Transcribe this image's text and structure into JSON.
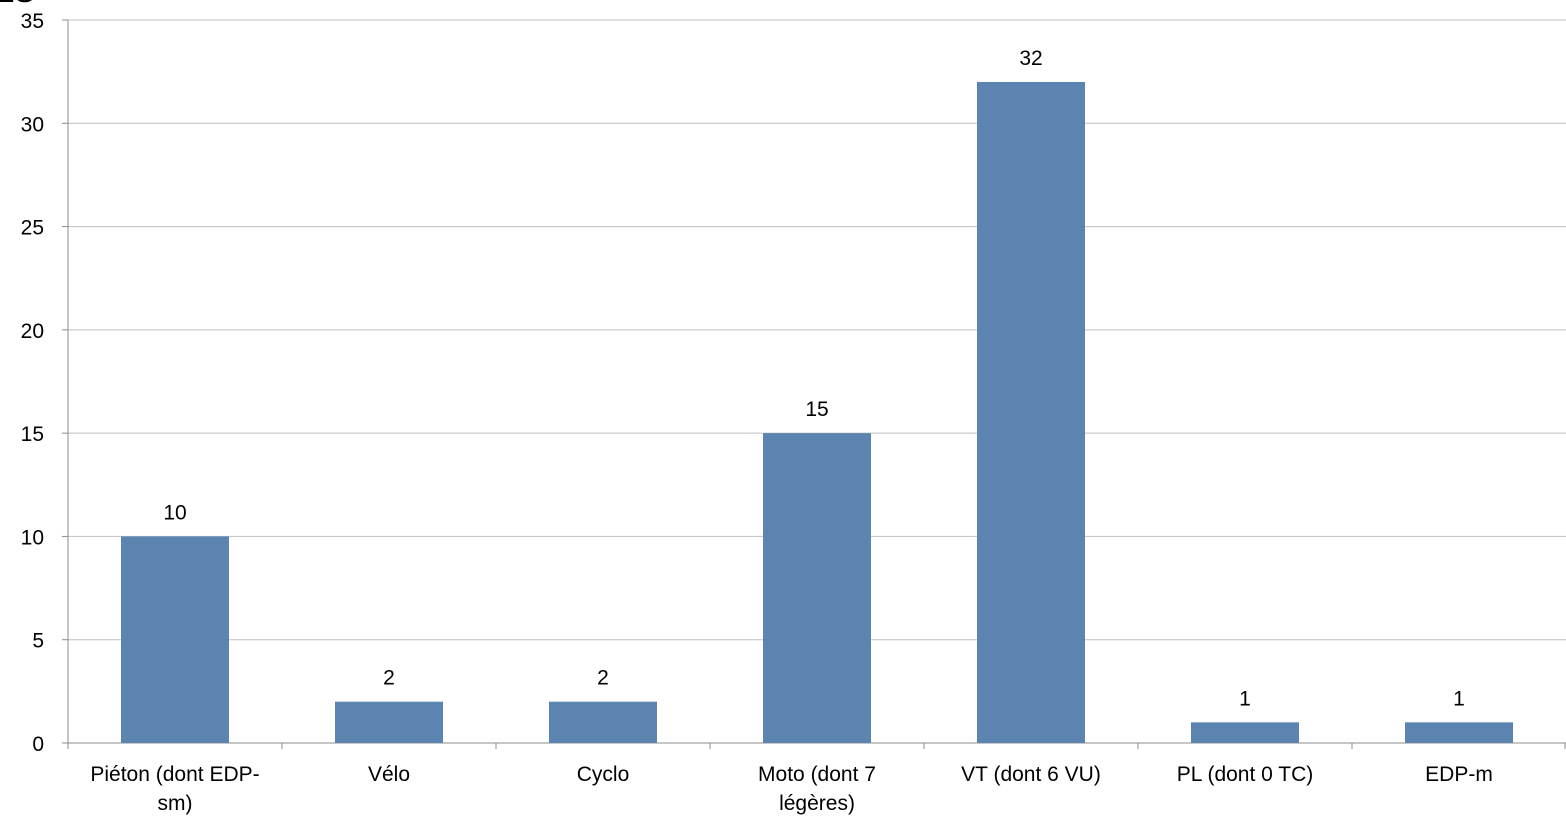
{
  "chart_data": {
    "type": "bar",
    "categories": [
      [
        "Piéton (dont EDP-",
        "sm)"
      ],
      [
        "Vélo"
      ],
      [
        "Cyclo"
      ],
      [
        "Moto (dont 7",
        "légères)"
      ],
      [
        "VT (dont 6 VU)"
      ],
      [
        "PL (dont 0 TC)"
      ],
      [
        "EDP-m"
      ]
    ],
    "values": [
      10,
      2,
      2,
      15,
      32,
      1,
      1
    ],
    "data_labels": [
      "10",
      "2",
      "2",
      "15",
      "32",
      "1",
      "1"
    ],
    "ylim": [
      0,
      35
    ],
    "yticks": [
      0,
      5,
      10,
      15,
      20,
      25,
      30,
      35
    ],
    "grid": true,
    "legend": "none",
    "colors": {
      "bar": "#5b84b1",
      "grid": "#bfbfbf",
      "axis": "#8c8c8c"
    }
  }
}
